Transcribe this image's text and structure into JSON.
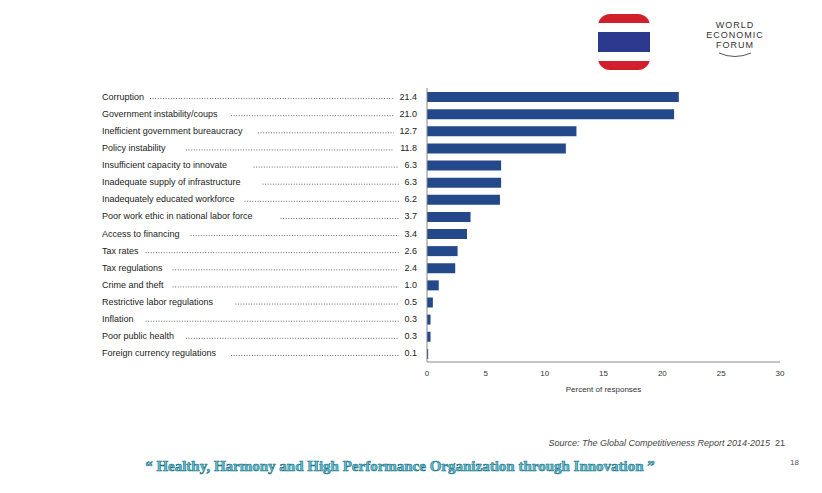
{
  "chart_data": {
    "type": "bar",
    "orientation": "horizontal",
    "categories": [
      "Corruption",
      "Government instability/coups",
      "Inefficient government bureaucracy",
      "Policy instability",
      "Insufficient capacity to innovate",
      "Inadequate supply of infrastructure",
      "Inadequately educated workforce",
      "Poor work ethic in national labor force",
      "Access to financing",
      "Tax rates",
      "Tax regulations",
      "Crime and theft",
      "Restrictive labor regulations",
      "Inflation",
      "Poor public health",
      "Foreign currency regulations"
    ],
    "values": [
      21.4,
      21.0,
      12.7,
      11.8,
      6.3,
      6.3,
      6.2,
      3.7,
      3.4,
      2.6,
      2.4,
      1.0,
      0.5,
      0.3,
      0.3,
      0.1
    ],
    "value_labels": [
      "21.4",
      "21.0",
      "12.7",
      "11.8",
      "6.3",
      "6.3",
      "6.2",
      "3.7",
      "3.4",
      "2.6",
      "2.4",
      "1.0",
      "0.5",
      "0.3",
      "0.3",
      "0.1"
    ],
    "data_labels": true,
    "color": "#24498a",
    "x_label": "Percent of responses",
    "xlim": [
      0,
      30
    ],
    "xticks": [
      0,
      5,
      10,
      15,
      20,
      25,
      30
    ],
    "grid": false,
    "annotations": [
      "WORLD ECONOMIC FORUM",
      "Source: The Global Competitiveness Report 2014-2015",
      "21",
      "“ Healthy, Harmony and High Performance Organization through Innovation ”",
      "18"
    ]
  }
}
